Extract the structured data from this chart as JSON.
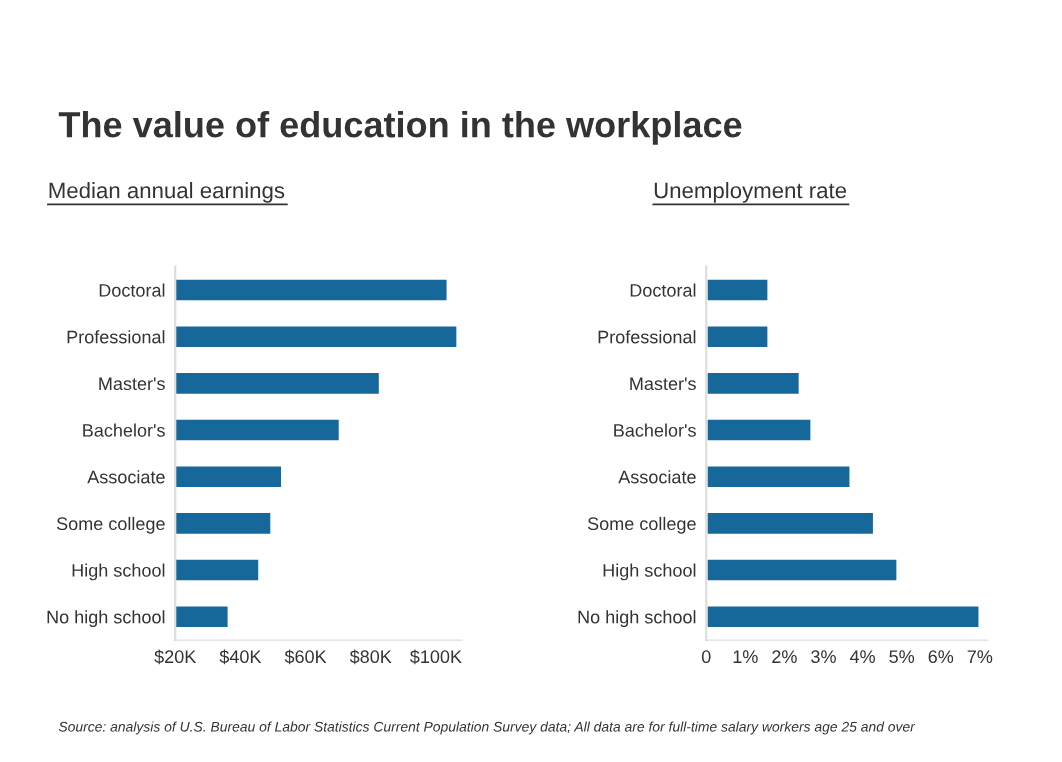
{
  "chart_data": [
    {
      "type": "bar",
      "orientation": "horizontal",
      "title": "Median annual earnings",
      "annotations": [
        "The value of education in the workplace",
        "Source: analysis of U.S. Bureau of Labor Statistics Current Population Survey data; All data are for full-time salary workers age 25 and over"
      ],
      "categories": [
        "Doctoral",
        "Professional",
        "Master's",
        "Bachelor's",
        "Associate",
        "Some college",
        "High school",
        "No high school"
      ],
      "values": [
        103.7,
        106.7,
        82.9,
        70.6,
        52.9,
        49.6,
        45.9,
        36.5
      ],
      "color": "#16679a",
      "xlim": [
        20,
        108
      ],
      "xticks": [
        {
          "value": 20,
          "label": "$20K"
        },
        {
          "value": 40,
          "label": "$40K"
        },
        {
          "value": 60,
          "label": "$60K"
        },
        {
          "value": 80,
          "label": "$80K"
        },
        {
          "value": 100,
          "label": "$100K"
        }
      ],
      "grid": false
    },
    {
      "type": "bar",
      "orientation": "horizontal",
      "title": "Unemployment rate",
      "categories": [
        "Doctoral",
        "Professional",
        "Master's",
        "Bachelor's",
        "Associate",
        "Some college",
        "High school",
        "No high school"
      ],
      "values": [
        1.6,
        1.6,
        2.4,
        2.7,
        3.7,
        4.3,
        4.9,
        7.0
      ],
      "color": "#16679a",
      "xlim": [
        0,
        7.2
      ],
      "xticks": [
        0,
        {
          "value": 1,
          "label": "1%"
        },
        {
          "value": 2,
          "label": "2%"
        },
        {
          "value": 3,
          "label": "3%"
        },
        {
          "value": 4,
          "label": "4%"
        },
        {
          "value": 5,
          "label": "5%"
        },
        {
          "value": 6,
          "label": "6%"
        },
        {
          "value": 7,
          "label": "7%"
        }
      ],
      "grid": false
    }
  ]
}
